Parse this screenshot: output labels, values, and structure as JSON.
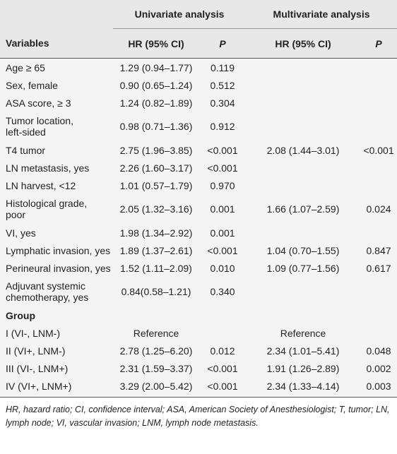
{
  "table": {
    "group_headers": [
      "Univariate analysis",
      "Multivariate analysis"
    ],
    "columns": [
      "Variables",
      "HR (95% CI)",
      "P",
      "HR (95% CI)",
      "P"
    ],
    "rows": [
      [
        "Age ≥ 65",
        "1.29 (0.94–1.77)",
        "0.119",
        null,
        null
      ],
      [
        "Sex, female",
        "0.90 (0.65–1.24)",
        "0.512",
        null,
        null
      ],
      [
        "ASA score, ≥ 3",
        "1.24 (0.82–1.89)",
        "0.304",
        null,
        null
      ],
      [
        [
          "Tumor location,",
          "left-sided"
        ],
        "0.98 (0.71–1.36)",
        "0.912",
        null,
        null
      ],
      [
        "T4 tumor",
        "2.75 (1.96–3.85)",
        "<0.001",
        "2.08 (1.44–3.01)",
        "<0.001"
      ],
      [
        "LN metastasis, yes",
        "2.26 (1.60–3.17)",
        "<0.001",
        null,
        null
      ],
      [
        "LN harvest, <12",
        "1.01 (0.57–1.79)",
        "0.970",
        null,
        null
      ],
      [
        [
          "Histological grade,",
          "poor"
        ],
        "2.05 (1.32–3.16)",
        "0.001",
        "1.66 (1.07–2.59)",
        "0.024"
      ],
      [
        "VI, yes",
        "1.98 (1.34–2.92)",
        "0.001",
        null,
        null
      ],
      [
        "Lymphatic invasion, yes",
        "1.89 (1.37–2.61)",
        "<0.001",
        "1.04 (0.70–1.55)",
        "0.847"
      ],
      [
        "Perineural invasion, yes",
        "1.52 (1.11–2.09)",
        "0.010",
        "1.09 (0.77–1.56)",
        "0.617"
      ],
      [
        [
          "Adjuvant systemic",
          "chemotherapy, yes"
        ],
        "0.84(0.58–1.21)",
        "0.340",
        null,
        null
      ]
    ],
    "group": {
      "title": "Group",
      "rows": [
        [
          "I (VI-, LNM-)",
          "Reference",
          null,
          "Reference",
          null
        ],
        [
          "II (VI+, LNM-)",
          "2.78 (1.25–6.20)",
          "0.012",
          "2.34 (1.01–5.41)",
          "0.048"
        ],
        [
          "III (VI-, LNM+)",
          "2.31 (1.59–3.37)",
          "<0.001",
          "1.91 (1.26–2.89)",
          "0.002"
        ],
        [
          "IV (VI+, LNM+)",
          "3.29 (2.00–5.42)",
          "<0.001",
          "2.34 (1.33–4.14)",
          "0.003"
        ]
      ]
    },
    "footnote": "HR, hazard ratio; CI, confidence interval; ASA, American Society of Anesthesiologist; T, tumor; LN, lymph node; VI, vascular invasion; LNM, lymph node metastasis."
  }
}
